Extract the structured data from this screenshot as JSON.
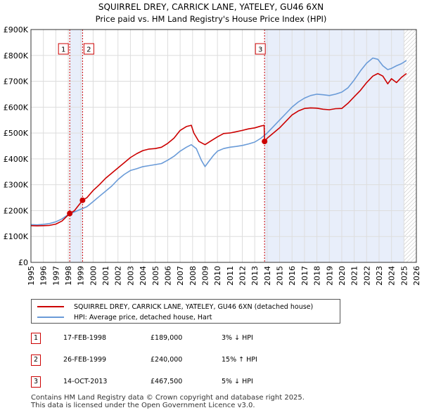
{
  "chart_data": {
    "type": "line",
    "title": "SQUIRREL DREY, CARRICK LANE, YATELEY, GU46 6XN",
    "subtitle": "Price paid vs. HM Land Registry's House Price Index (HPI)",
    "x_ticks": [
      "1995",
      "1996",
      "1997",
      "1998",
      "1999",
      "2000",
      "2001",
      "2002",
      "2003",
      "2004",
      "2005",
      "2006",
      "2007",
      "2008",
      "2009",
      "2010",
      "2011",
      "2012",
      "2013",
      "2014",
      "2015",
      "2016",
      "2017",
      "2018",
      "2019",
      "2020",
      "2021",
      "2022",
      "2023",
      "2024",
      "2025",
      "2026"
    ],
    "y_ticks": [
      "£0",
      "£100K",
      "£200K",
      "£300K",
      "£400K",
      "£500K",
      "£600K",
      "£700K",
      "£800K",
      "£900K"
    ],
    "xlim": [
      1995,
      2026
    ],
    "ylim": [
      0,
      900000
    ],
    "series": [
      {
        "name": "SQUIRREL DREY, CARRICK LANE, YATELEY, GU46 6XN (detached house)",
        "color": "#cc0000",
        "x": [
          1995.0,
          1995.5,
          1996.0,
          1996.5,
          1997.0,
          1997.5,
          1998.12,
          1998.5,
          1999.15,
          1999.5,
          2000.0,
          2000.5,
          2001.0,
          2001.5,
          2002.0,
          2002.5,
          2003.0,
          2003.5,
          2004.0,
          2004.5,
          2005.0,
          2005.5,
          2006.0,
          2006.5,
          2007.0,
          2007.5,
          2007.9,
          2008.1,
          2008.5,
          2009.0,
          2009.5,
          2010.0,
          2010.5,
          2011.0,
          2011.5,
          2012.0,
          2012.5,
          2013.0,
          2013.5,
          2013.75,
          2013.79,
          2014.0,
          2014.5,
          2015.0,
          2015.5,
          2016.0,
          2016.5,
          2017.0,
          2017.5,
          2018.0,
          2018.5,
          2019.0,
          2019.5,
          2020.0,
          2020.5,
          2021.0,
          2021.5,
          2022.0,
          2022.5,
          2022.9,
          2023.3,
          2023.7,
          2024.0,
          2024.4,
          2024.8,
          2025.2
        ],
        "values": [
          142000,
          141000,
          142000,
          143000,
          148000,
          160000,
          189000,
          200000,
          240000,
          250000,
          278000,
          300000,
          325000,
          345000,
          365000,
          385000,
          405000,
          420000,
          432000,
          438000,
          440000,
          445000,
          460000,
          480000,
          510000,
          525000,
          530000,
          500000,
          468000,
          455000,
          470000,
          485000,
          498000,
          500000,
          505000,
          510000,
          516000,
          520000,
          527000,
          530000,
          467500,
          480000,
          500000,
          520000,
          545000,
          570000,
          585000,
          595000,
          597000,
          596000,
          592000,
          590000,
          594000,
          595000,
          615000,
          640000,
          665000,
          695000,
          720000,
          730000,
          720000,
          690000,
          710000,
          695000,
          715000,
          730000
        ]
      },
      {
        "name": "HPI: Average price, detached house, Hart",
        "color": "#6a9bd8",
        "x": [
          1995.0,
          1995.5,
          1996.0,
          1996.5,
          1997.0,
          1997.5,
          1998.0,
          1998.5,
          1999.0,
          1999.5,
          2000.0,
          2000.5,
          2001.0,
          2001.5,
          2002.0,
          2002.5,
          2003.0,
          2003.5,
          2004.0,
          2004.5,
          2005.0,
          2005.5,
          2006.0,
          2006.5,
          2007.0,
          2007.5,
          2007.9,
          2008.3,
          2008.7,
          2009.0,
          2009.3,
          2009.7,
          2010.0,
          2010.5,
          2011.0,
          2011.5,
          2012.0,
          2012.5,
          2013.0,
          2013.5,
          2014.0,
          2014.5,
          2015.0,
          2015.5,
          2016.0,
          2016.5,
          2017.0,
          2017.5,
          2018.0,
          2018.5,
          2019.0,
          2019.5,
          2020.0,
          2020.5,
          2021.0,
          2021.5,
          2022.0,
          2022.5,
          2022.9,
          2023.3,
          2023.7,
          2024.0,
          2024.4,
          2024.8,
          2025.2
        ],
        "values": [
          146000,
          145000,
          147000,
          150000,
          157000,
          168000,
          185000,
          195000,
          205000,
          215000,
          235000,
          255000,
          275000,
          295000,
          320000,
          340000,
          355000,
          362000,
          370000,
          374000,
          378000,
          382000,
          395000,
          410000,
          430000,
          445000,
          455000,
          440000,
          395000,
          370000,
          390000,
          415000,
          430000,
          440000,
          445000,
          448000,
          452000,
          458000,
          465000,
          480000,
          500000,
          525000,
          550000,
          575000,
          600000,
          620000,
          635000,
          645000,
          650000,
          648000,
          645000,
          650000,
          658000,
          675000,
          705000,
          740000,
          770000,
          790000,
          785000,
          760000,
          745000,
          750000,
          760000,
          768000,
          780000
        ]
      }
    ],
    "annotations": [
      {
        "label": "1",
        "x": 1998.12,
        "price": 189000
      },
      {
        "label": "2",
        "x": 1999.15,
        "price": 240000
      },
      {
        "label": "3",
        "x": 2013.79,
        "price": 467500
      }
    ],
    "shaded_regions": [
      {
        "from": 1998.12,
        "to": 1999.15
      },
      {
        "from": 2013.79,
        "to": 2025.0
      }
    ],
    "hatched_region": {
      "from": 2025.0,
      "to": 2026.0
    },
    "grid": true
  },
  "legend": {
    "red_label": "SQUIRREL DREY, CARRICK LANE, YATELEY, GU46 6XN (detached house)",
    "blue_label": "HPI: Average price, detached house, Hart"
  },
  "sales": [
    {
      "num": "1",
      "date": "17-FEB-1998",
      "price": "£189,000",
      "hpi": "3% ↓ HPI"
    },
    {
      "num": "2",
      "date": "26-FEB-1999",
      "price": "£240,000",
      "hpi": "15% ↑ HPI"
    },
    {
      "num": "3",
      "date": "14-OCT-2013",
      "price": "£467,500",
      "hpi": "5% ↓ HPI"
    }
  ],
  "footer": {
    "line1": "Contains HM Land Registry data © Crown copyright and database right 2025.",
    "line2": "This data is licensed under the Open Government Licence v3.0."
  },
  "colors": {
    "price_line": "#cc0000",
    "hpi_line": "#6a9bd8",
    "shade": "#e8eefa",
    "grid": "#dddddd"
  }
}
